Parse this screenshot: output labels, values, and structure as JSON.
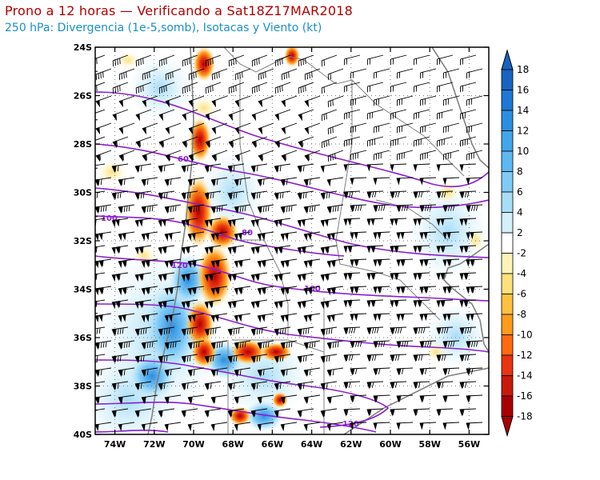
{
  "title": "Prono a 12 horas — Verificando a Sat18Z17MAR2018",
  "subtitle": "250 hPa: Divergencia (1e-5,somb), Isotacas y Viento (kt)",
  "map": {
    "lon_range": [
      -75,
      -55
    ],
    "lat_range": [
      -40,
      -24
    ],
    "lon_ticks": [
      "74W",
      "72W",
      "70W",
      "68W",
      "66W",
      "64W",
      "62W",
      "60W",
      "58W",
      "56W"
    ],
    "lat_ticks": [
      "24S",
      "26S",
      "28S",
      "30S",
      "32S",
      "34S",
      "36S",
      "38S",
      "40S"
    ],
    "isotach_labels": [
      "60",
      "80",
      "100",
      "100",
      "120",
      "120"
    ],
    "isotach_color": "#8a1fd0",
    "coast_color": "#808080",
    "gridlines": "dotted"
  },
  "colorbar": {
    "levels": [
      "18",
      "16",
      "14",
      "12",
      "10",
      "8",
      "6",
      "4",
      "2",
      "-2",
      "-4",
      "-6",
      "-8",
      "-10",
      "-12",
      "-14",
      "-16",
      "-18"
    ],
    "colors": [
      "#1565c0",
      "#1e78d4",
      "#2b8fe0",
      "#41a6ec",
      "#5cb8f2",
      "#7fcbf7",
      "#a8ddf8",
      "#d4f0fa",
      "#ffffff",
      "#fff3b8",
      "#ffe07a",
      "#ffc040",
      "#ff9a1a",
      "#ff6a10",
      "#e83410",
      "#c81a08",
      "#a80000"
    ]
  }
}
